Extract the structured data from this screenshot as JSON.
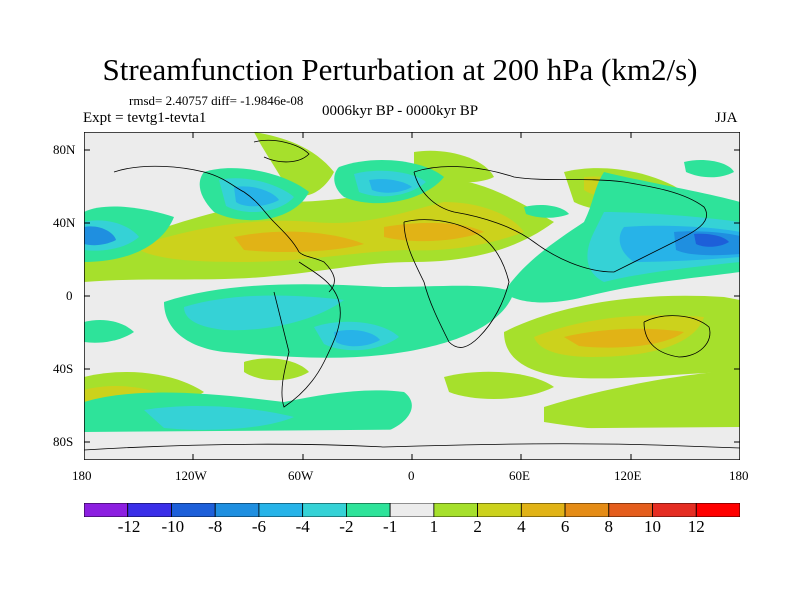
{
  "title": "Streamfunction Perturbation at 200 hPa (km2/s)",
  "stats": "rmsd= 2.40757 diff= -1.9846e-08",
  "experiment": "Expt = tevtg1-tevta1",
  "period": "0006kyr BP - 0000kyr BP",
  "season": "JJA",
  "lat_labels": [
    "80N",
    "40N",
    "0",
    "40S",
    "80S"
  ],
  "lon_labels": [
    "180",
    "120W",
    "60W",
    "0",
    "60E",
    "120E",
    "180"
  ],
  "colorbar": {
    "labels": [
      "-12",
      "-10",
      "-8",
      "-6",
      "-4",
      "-2",
      "-1",
      "1",
      "2",
      "4",
      "6",
      "8",
      "10",
      "12"
    ],
    "colors": [
      "#8c1fe0",
      "#3a2ee8",
      "#1d5fd9",
      "#1f8fe0",
      "#27b3e8",
      "#35d2d6",
      "#2ee39a",
      "#ececec",
      "#a6e02c",
      "#ccd21c",
      "#e1b316",
      "#e58c16",
      "#e45d1c",
      "#e52d22",
      "#ff0000"
    ]
  },
  "colors": {
    "land_outline": "#000000",
    "neutral": "#ececec"
  }
}
